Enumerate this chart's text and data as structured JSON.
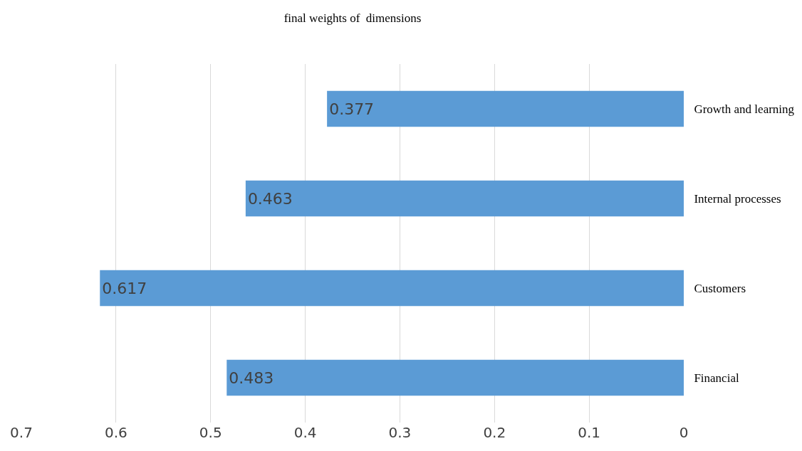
{
  "chart_data": {
    "type": "bar",
    "title": "final weights of  dimensions",
    "orientation": "horizontal",
    "categories": [
      "Growth and learning",
      "Internal processes",
      "Customers",
      "Financial"
    ],
    "values": [
      0.377,
      0.463,
      0.617,
      0.483
    ],
    "color": "#5b9bd5",
    "xlim": [
      0.7,
      0
    ],
    "xticks": [
      0.7,
      0.6,
      0.5,
      0.4,
      0.3,
      0.2,
      0.1,
      0
    ],
    "grid": "x",
    "data_labels": true
  }
}
